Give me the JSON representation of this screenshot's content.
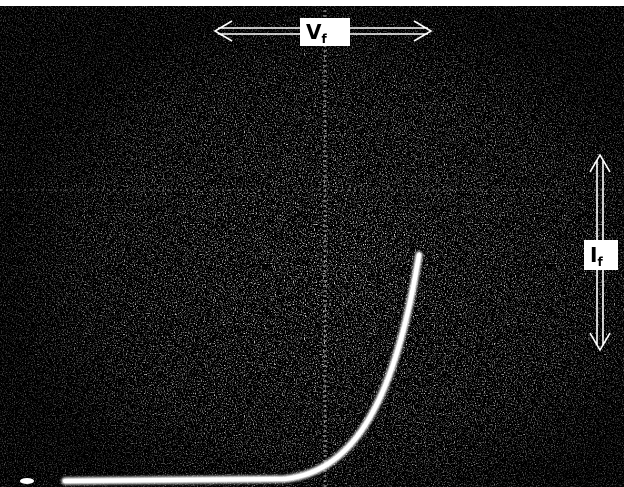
{
  "labels": {
    "voltage": {
      "symbol": "V",
      "subscript": "f"
    },
    "current": {
      "symbol": "I",
      "subscript": "f"
    }
  }
}
